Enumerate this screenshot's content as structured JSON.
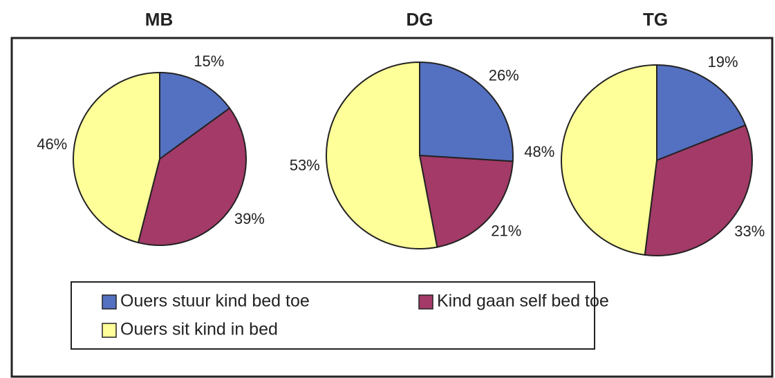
{
  "chart_data": [
    {
      "type": "pie",
      "title": "MB",
      "categories": [
        "Ouers stuur kind bed toe",
        "Kind gaan self bed toe",
        "Ouers sit kind in bed"
      ],
      "values": [
        15,
        39,
        46
      ],
      "value_labels": [
        "15%",
        "39%",
        "46%"
      ],
      "colors": [
        "#5470c0",
        "#a33a68",
        "#ffff99"
      ]
    },
    {
      "type": "pie",
      "title": "DG",
      "categories": [
        "Ouers stuur kind bed toe",
        "Kind gaan self bed toe",
        "Ouers sit kind in bed"
      ],
      "values": [
        26,
        21,
        53
      ],
      "value_labels": [
        "26%",
        "21%",
        "53%"
      ],
      "colors": [
        "#5470c0",
        "#a33a68",
        "#ffff99"
      ]
    },
    {
      "type": "pie",
      "title": "TG",
      "categories": [
        "Ouers stuur kind bed toe",
        "Kind gaan self bed toe",
        "Ouers sit kind in bed"
      ],
      "values": [
        19,
        33,
        48
      ],
      "value_labels": [
        "19%",
        "33%",
        "48%"
      ],
      "colors": [
        "#5470c0",
        "#a33a68",
        "#ffff99"
      ]
    }
  ]
}
